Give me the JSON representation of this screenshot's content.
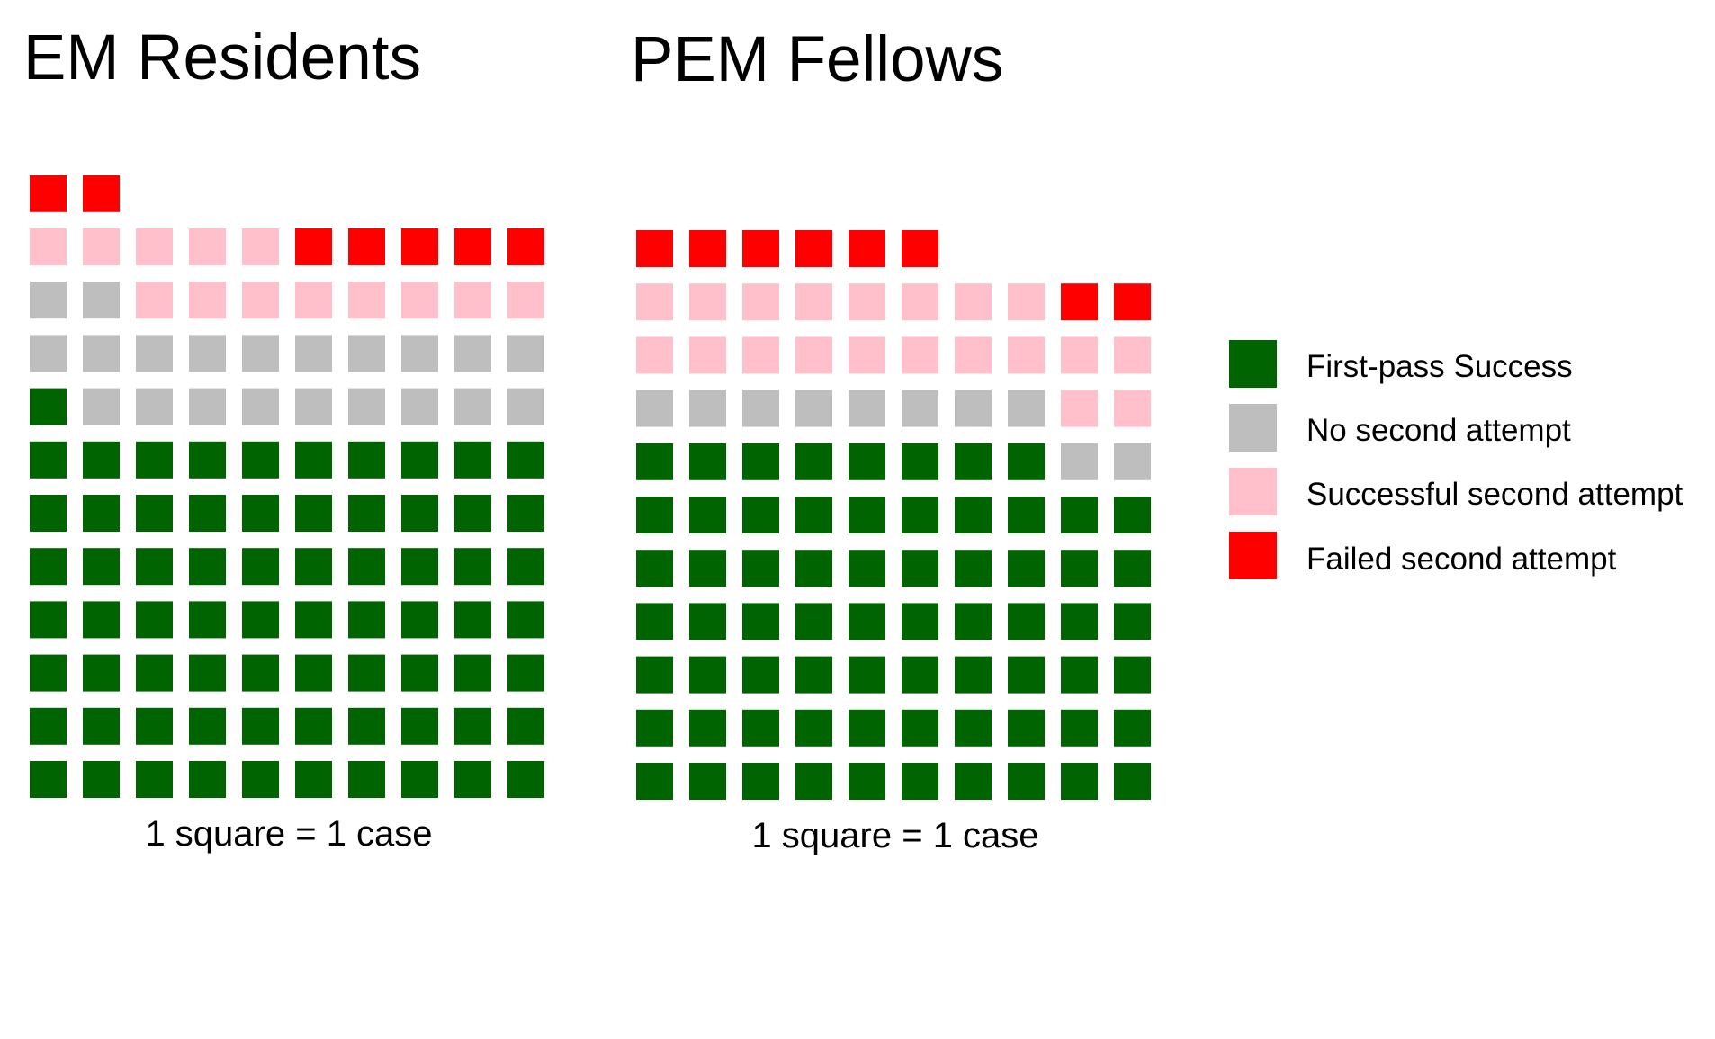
{
  "chart_data": {
    "type": "waffle",
    "unit_note": "1 square = 1 case",
    "columns_per_row": 10,
    "categories": [
      "First-pass Success",
      "No second attempt",
      "Successful second attempt",
      "Failed second attempt"
    ],
    "colors": [
      "#006400",
      "#BEBEBE",
      "#FFC0CB",
      "#FF0000"
    ],
    "panels": [
      {
        "title": "EM Residents",
        "caption": "1 square = 1 case",
        "values": [
          71,
          21,
          13,
          7
        ]
      },
      {
        "title": "PEM Fellows",
        "caption": "1 square = 1 case",
        "values": [
          68,
          10,
          20,
          8
        ]
      }
    ],
    "legend": {
      "position": "right",
      "items": [
        {
          "label": "First-pass Success",
          "color": "#006400"
        },
        {
          "label": "No second attempt",
          "color": "#BEBEBE"
        },
        {
          "label": "Successful second attempt",
          "color": "#FFC0CB"
        },
        {
          "label": "Failed second attempt",
          "color": "#FF0000"
        }
      ]
    }
  }
}
